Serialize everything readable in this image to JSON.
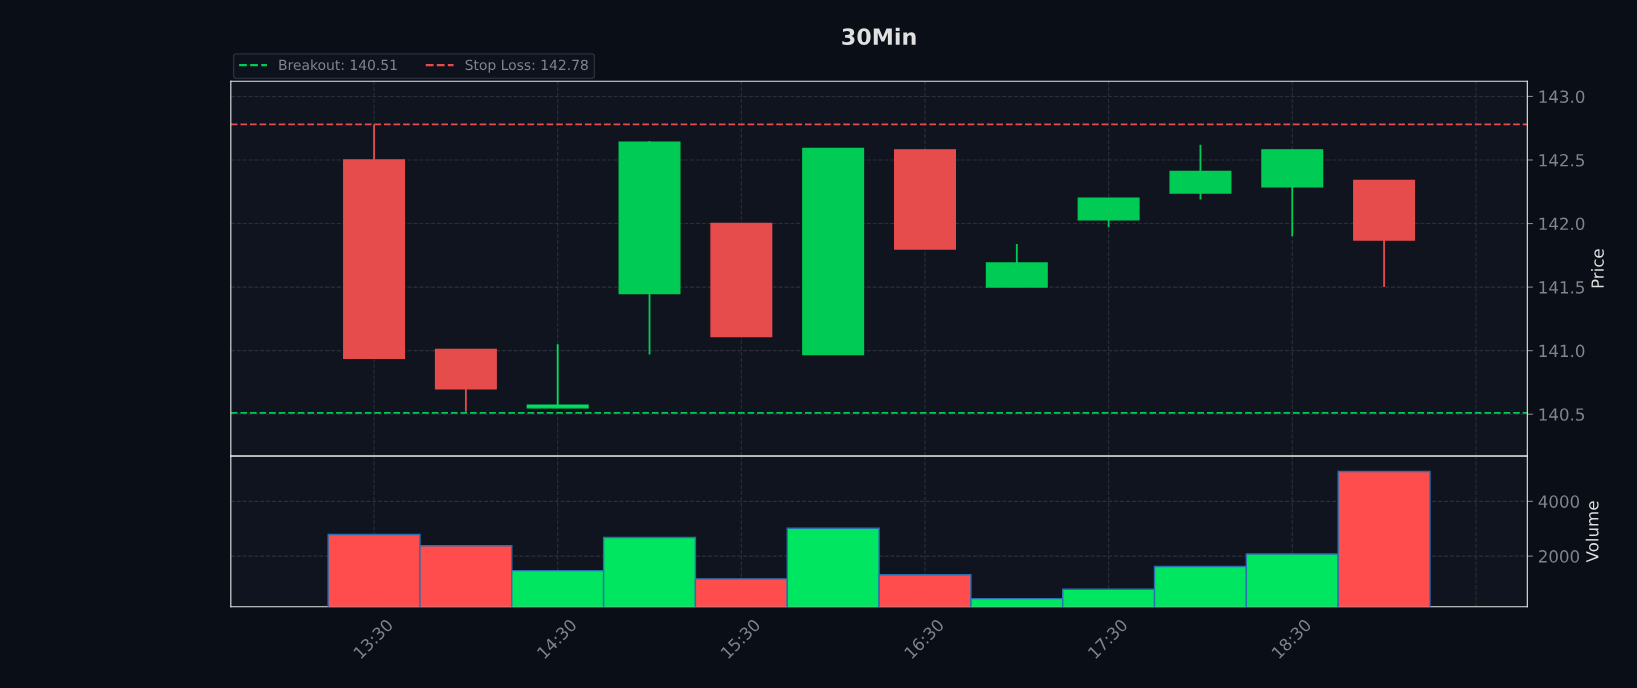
{
  "chart_data": [
    {
      "type": "candlestick",
      "title": "30Min",
      "ylabel": "Price",
      "x": [
        13.5,
        14,
        14.5,
        15,
        15.5,
        16,
        16.5,
        17,
        17.5,
        18,
        18.5,
        19
      ],
      "ohlc": [
        [
          142.5,
          142.78,
          140.94,
          140.94
        ],
        [
          141.01,
          141.01,
          140.52,
          140.7
        ],
        [
          140.55,
          141.05,
          140.55,
          140.57
        ],
        [
          141.45,
          142.65,
          140.97,
          142.64
        ],
        [
          142.0,
          142.0,
          141.11,
          141.11
        ],
        [
          140.97,
          142.59,
          140.97,
          142.59
        ],
        [
          142.58,
          142.58,
          141.8,
          141.8
        ],
        [
          141.5,
          141.84,
          141.5,
          141.69
        ],
        [
          142.03,
          142.2,
          141.97,
          142.2
        ],
        [
          142.24,
          142.62,
          142.19,
          142.41
        ],
        [
          142.29,
          142.58,
          141.9,
          142.58
        ],
        [
          142.34,
          142.34,
          141.5,
          141.87
        ]
      ],
      "colors": [
        "#e74c4c",
        "#e74c4c",
        "#00e060",
        "#00cc55",
        "#e74c4c",
        "#00cc55",
        "#e74c4c",
        "#00cc55",
        "#00cc55",
        "#00cc55",
        "#00cc55",
        "#e74c4c"
      ],
      "xlim": [
        12.72,
        19.78
      ],
      "ylim": [
        140.17,
        143.12
      ],
      "yticks": [
        140.5,
        {
          "value": 141,
          "label": "141.0"
        },
        141.5,
        {
          "value": 142,
          "label": "142.0"
        },
        142.5,
        {
          "value": 143,
          "label": "143.0"
        }
      ],
      "xticks": [
        {
          "value": 13.5,
          "label": null
        },
        {
          "value": 14.5,
          "label": null
        },
        {
          "value": 15.5,
          "label": null
        },
        {
          "value": 16.5,
          "label": null
        },
        {
          "value": 17.5,
          "label": null
        },
        {
          "value": 18.5,
          "label": null
        },
        {
          "value": 19.5,
          "label": null
        }
      ],
      "ref_lines": [
        {
          "axis": "y",
          "value": 140.51,
          "label": "Breakout: 140.51",
          "color": "#00cc55",
          "line_style": "dashed"
        },
        {
          "axis": "y",
          "value": 142.78,
          "label": "Stop Loss: 142.78",
          "color": "#e74c4c",
          "line_style": "dashed"
        }
      ],
      "grid": true,
      "legend": "top left",
      "tick_labels": "y"
    },
    {
      "type": "bar",
      "ylabel": "Volume",
      "x": [
        13.5,
        14,
        14.5,
        15,
        15.5,
        16,
        16.5,
        17,
        17.5,
        18,
        18.5,
        19
      ],
      "values": [
        2790,
        2380,
        1470,
        2680,
        1170,
        3020,
        1320,
        450,
        790,
        1620,
        2080,
        5090
      ],
      "colors": [
        "#ff4d4d",
        "#ff4d4d",
        "#00e660",
        "#00e660",
        "#ff4d4d",
        "#00e660",
        "#ff4d4d",
        "#00e660",
        "#00e660",
        "#00e660",
        "#00e660",
        "#ff4d4d"
      ],
      "xlim": [
        12.72,
        19.78
      ],
      "ylim": [
        150,
        5650
      ],
      "yticks": [
        2000,
        4000
      ],
      "xticks": [
        {
          "value": 13.5,
          "label": "13:30"
        },
        {
          "value": 14.5,
          "label": "14:30"
        },
        {
          "value": 15.5,
          "label": "15:30"
        },
        {
          "value": 16.5,
          "label": "16:30"
        },
        {
          "value": 17.5,
          "label": "17:30"
        },
        {
          "value": 18.5,
          "label": "18:30"
        },
        {
          "value": 19.5,
          "label": null
        }
      ],
      "grid": true
    }
  ]
}
